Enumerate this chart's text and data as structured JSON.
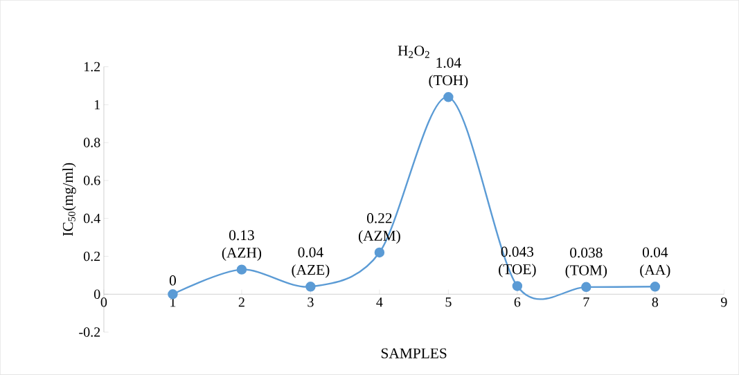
{
  "chart_data": {
    "type": "line",
    "title": "H$_{2}$O$_{2}$",
    "xlabel": "SAMPLES",
    "ylabel": "IC$_{50}$(mg/ml)",
    "x": [
      1,
      2,
      3,
      4,
      5,
      6,
      7,
      8
    ],
    "series": [
      {
        "color": "#5b9bd5",
        "values": [
          0,
          0.13,
          0.04,
          0.22,
          1.04,
          0.043,
          0.038,
          0.04
        ],
        "value_labels": [
          "0",
          "0.13 (AZH)",
          "0.04 (AZE)",
          "0.22 (AZM)",
          "1.04 (TOH)",
          "0.043 (TOE)",
          "0.038 (TOM)",
          "0.04 (AA)"
        ]
      }
    ],
    "xlim": [
      0,
      9
    ],
    "xticks": [
      0,
      1,
      2,
      3,
      4,
      5,
      6,
      7,
      8,
      9
    ],
    "ylim": [
      -0.2,
      1.2
    ],
    "yticks": [
      -0.2,
      0,
      0.2,
      0.4,
      0.6,
      0.8,
      1,
      1.2
    ],
    "marker": "circle",
    "line_style": "solid",
    "grid": false
  }
}
